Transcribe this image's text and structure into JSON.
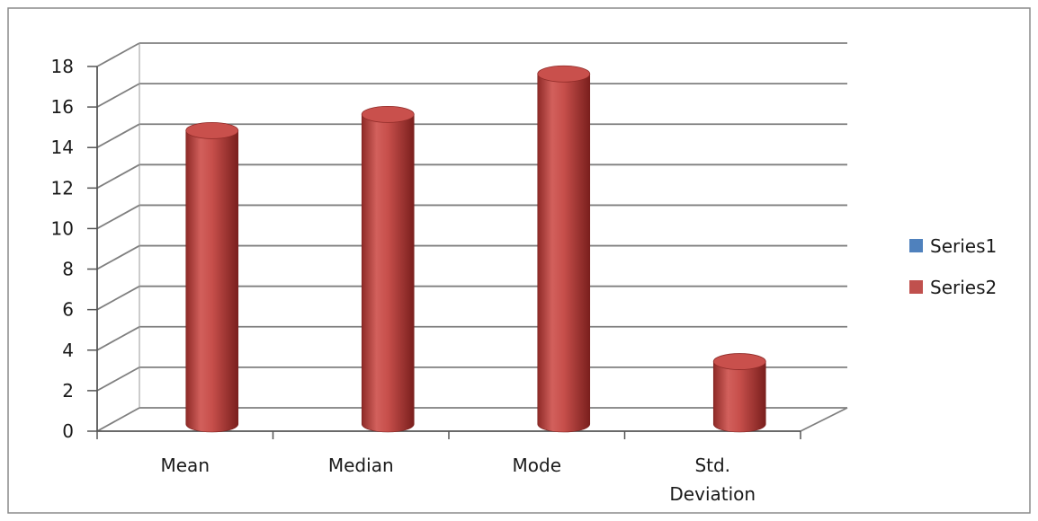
{
  "chart_data": {
    "type": "bar",
    "style": "3d-cylinder",
    "categories": [
      "Mean",
      "Median",
      "Mode",
      "Std. Deviation"
    ],
    "category_lines": [
      [
        "Mean"
      ],
      [
        "Median"
      ],
      [
        "Mode"
      ],
      [
        "Std.",
        "Deviation"
      ]
    ],
    "series": [
      {
        "name": "Series1",
        "values": [
          0,
          0,
          0,
          0
        ],
        "color": "#4f81bd"
      },
      {
        "name": "Series2",
        "values": [
          14.2,
          15.0,
          17.0,
          2.8
        ],
        "color": "#c0504d"
      }
    ],
    "y_ticks": [
      "0",
      "2",
      "4",
      "6",
      "8",
      "10",
      "12",
      "14",
      "16",
      "18"
    ],
    "ylim": [
      0,
      18
    ],
    "grid": true,
    "legend_position": "right"
  }
}
